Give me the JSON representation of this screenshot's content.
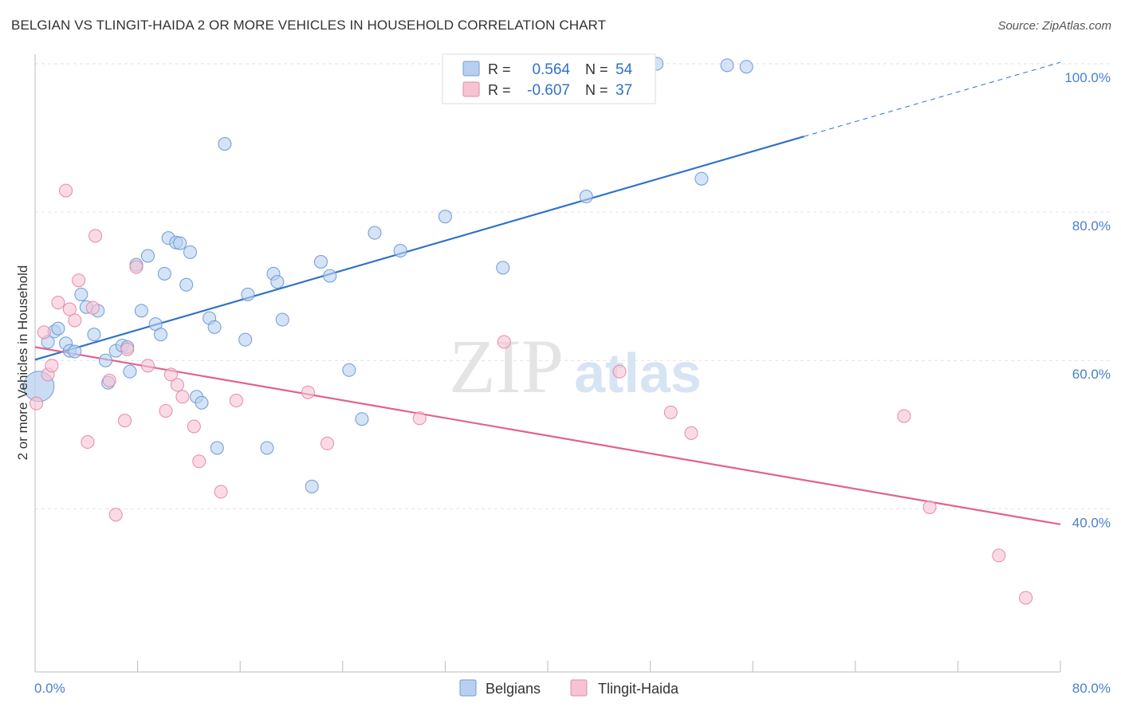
{
  "header": {
    "title": "BELGIAN VS TLINGIT-HAIDA 2 OR MORE VEHICLES IN HOUSEHOLD CORRELATION CHART",
    "source": "Source: ZipAtlas.com"
  },
  "watermark": {
    "zip": "ZIP",
    "atlas": "atlas"
  },
  "legend_box": {
    "rows": [
      {
        "r_label": "R =",
        "r_value": "0.564",
        "n_label": "N =",
        "n_value": "54"
      },
      {
        "r_label": "R =",
        "r_value": "-0.607",
        "n_label": "N =",
        "n_value": "37"
      }
    ]
  },
  "bottom_legend": {
    "items": [
      "Belgians",
      "Tlingit-Haida"
    ]
  },
  "colors": {
    "blue_fill": "#b8d0f0",
    "blue_stroke": "#6f9bd6",
    "blue_line": "#2f72c9",
    "pink_fill": "#f6c3d3",
    "pink_stroke": "#e58aa8",
    "pink_line": "#e0628f",
    "tick_text": "#4a7fd0",
    "grid": "#e2e2e2"
  },
  "chart_data": {
    "type": "scatter",
    "title": "BELGIAN VS TLINGIT-HAIDA 2 OR MORE VEHICLES IN HOUSEHOLD CORRELATION CHART",
    "xlabel": "",
    "ylabel": "2 or more Vehicles in Household",
    "xlim": [
      0,
      80
    ],
    "ylim": [
      18,
      100
    ],
    "x_tick_labels": [
      "0.0%",
      "80.0%"
    ],
    "y_ticks": [
      40,
      60,
      80,
      100
    ],
    "y_tick_labels": [
      "40.0%",
      "60.0%",
      "80.0%",
      "100.0%"
    ],
    "grid": true,
    "legend_position": "top-center",
    "series": [
      {
        "name": "Belgians",
        "r": 0.564,
        "n": 54,
        "trend": {
          "x0": 0,
          "y0": 60.1,
          "x1": 60,
          "y1": 90.2,
          "dash_to_x": 80,
          "dash_to_y": 100.2
        },
        "points": [
          [
            0.3,
            56.5
          ],
          [
            1.0,
            62.5
          ],
          [
            1.5,
            63.9
          ],
          [
            1.8,
            64.3
          ],
          [
            2.4,
            62.3
          ],
          [
            2.7,
            61.3
          ],
          [
            3.1,
            61.2
          ],
          [
            3.6,
            68.9
          ],
          [
            4.0,
            67.2
          ],
          [
            4.6,
            63.5
          ],
          [
            4.9,
            66.7
          ],
          [
            5.5,
            60.0
          ],
          [
            5.7,
            57.0
          ],
          [
            6.3,
            61.3
          ],
          [
            6.8,
            62.0
          ],
          [
            7.2,
            61.8
          ],
          [
            7.4,
            58.5
          ],
          [
            7.9,
            72.9
          ],
          [
            8.3,
            66.7
          ],
          [
            8.8,
            74.1
          ],
          [
            9.4,
            64.9
          ],
          [
            9.8,
            63.5
          ],
          [
            10.1,
            71.7
          ],
          [
            10.4,
            76.5
          ],
          [
            11.0,
            75.9
          ],
          [
            11.3,
            75.8
          ],
          [
            11.8,
            70.2
          ],
          [
            12.1,
            74.6
          ],
          [
            12.6,
            55.1
          ],
          [
            13.0,
            54.3
          ],
          [
            13.6,
            65.7
          ],
          [
            14.0,
            64.5
          ],
          [
            14.2,
            48.2
          ],
          [
            14.8,
            89.2
          ],
          [
            16.4,
            62.8
          ],
          [
            16.6,
            68.9
          ],
          [
            18.1,
            48.2
          ],
          [
            18.6,
            71.7
          ],
          [
            18.9,
            70.6
          ],
          [
            19.3,
            65.5
          ],
          [
            21.6,
            43.0
          ],
          [
            22.3,
            73.3
          ],
          [
            23.0,
            71.4
          ],
          [
            24.5,
            58.7
          ],
          [
            25.5,
            52.1
          ],
          [
            26.5,
            77.2
          ],
          [
            28.5,
            74.8
          ],
          [
            32.0,
            79.4
          ],
          [
            36.5,
            72.5
          ],
          [
            43.0,
            82.1
          ],
          [
            48.5,
            100.0
          ],
          [
            52.0,
            84.5
          ],
          [
            54.0,
            99.8
          ],
          [
            55.5,
            99.6
          ]
        ]
      },
      {
        "name": "Tlingit-Haida",
        "r": -0.607,
        "n": 37,
        "trend": {
          "x0": 0,
          "y0": 61.8,
          "x1": 80,
          "y1": 37.9
        },
        "points": [
          [
            0.1,
            54.2
          ],
          [
            0.7,
            63.8
          ],
          [
            1.0,
            58.1
          ],
          [
            1.3,
            59.3
          ],
          [
            1.8,
            67.8
          ],
          [
            2.4,
            82.9
          ],
          [
            2.7,
            66.9
          ],
          [
            3.1,
            65.4
          ],
          [
            3.4,
            70.8
          ],
          [
            4.1,
            49.0
          ],
          [
            4.5,
            67.1
          ],
          [
            4.7,
            76.8
          ],
          [
            5.8,
            57.3
          ],
          [
            6.3,
            39.2
          ],
          [
            7.0,
            51.9
          ],
          [
            7.2,
            61.5
          ],
          [
            7.9,
            72.6
          ],
          [
            8.8,
            59.3
          ],
          [
            10.2,
            53.2
          ],
          [
            10.6,
            58.1
          ],
          [
            11.1,
            56.7
          ],
          [
            11.5,
            55.1
          ],
          [
            12.4,
            51.1
          ],
          [
            12.8,
            46.4
          ],
          [
            14.5,
            42.3
          ],
          [
            15.7,
            54.6
          ],
          [
            21.3,
            55.7
          ],
          [
            22.8,
            48.8
          ],
          [
            30.0,
            52.2
          ],
          [
            36.6,
            62.5
          ],
          [
            45.6,
            58.5
          ],
          [
            49.6,
            53.0
          ],
          [
            51.2,
            50.2
          ],
          [
            67.8,
            52.5
          ],
          [
            69.8,
            40.2
          ],
          [
            75.2,
            33.7
          ],
          [
            77.3,
            28.0
          ]
        ]
      }
    ]
  }
}
